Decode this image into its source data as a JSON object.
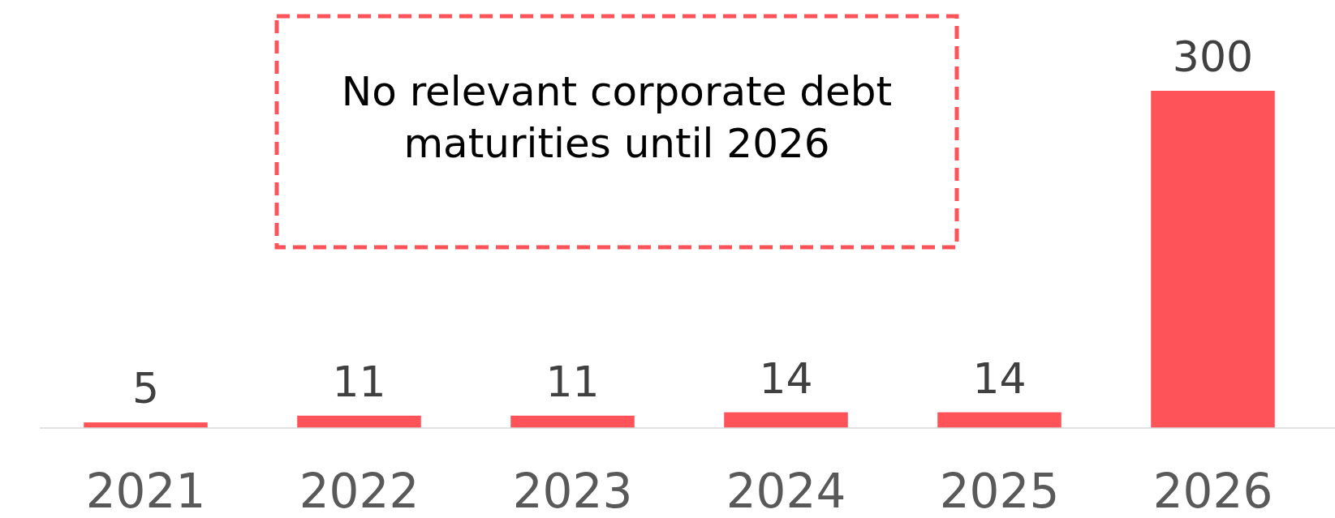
{
  "chart_data": {
    "type": "bar",
    "categories": [
      "2021",
      "2022",
      "2023",
      "2024",
      "2025",
      "2026"
    ],
    "values": [
      5,
      11,
      11,
      14,
      14,
      300
    ],
    "color": "#ff535a",
    "data_labels": true,
    "annotations": [
      "No relevant corporate debt maturities until 2026"
    ]
  }
}
